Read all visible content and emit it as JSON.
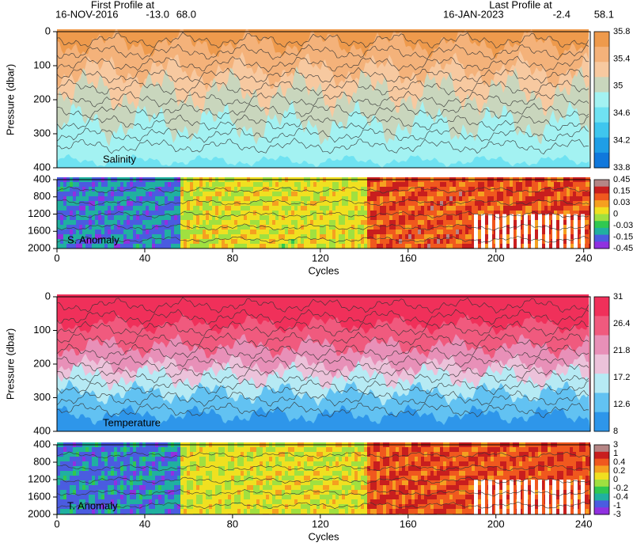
{
  "header": {
    "first_label": "First Profile at",
    "first_date": "16-NOV-2016",
    "first_lon": "-13.0",
    "first_lat": "68.0",
    "last_label": "Last Profile at",
    "last_date": "16-JAN-2023",
    "last_lon": "-2.4",
    "last_lat": "58.1"
  },
  "panels": [
    {
      "label": "Salinity",
      "ylabel": "Pressure (dbar)",
      "ylim": [
        0,
        400
      ],
      "yticks": [
        0,
        100,
        200,
        300,
        400
      ],
      "xlim": [
        0,
        243
      ],
      "colorbar": {
        "labels": [
          "35.8",
          "35.4",
          "35",
          "34.6",
          "34.2",
          "33.8"
        ],
        "colors": [
          "#ee9a4c",
          "#f4b27a",
          "#f7c9a0",
          "#c9d6bd",
          "#a3f2f2",
          "#6fe2f2",
          "#3fc6ee",
          "#1f9ee6",
          "#1078dc"
        ]
      }
    },
    {
      "label": "S. Anomaly",
      "xlabel": "Cycles",
      "ylim": [
        400,
        2000
      ],
      "yticks": [
        400,
        800,
        1200,
        1600,
        2000
      ],
      "xlim": [
        0,
        243
      ],
      "xticks": [
        0,
        40,
        80,
        120,
        160,
        200,
        240
      ],
      "colorbar": {
        "labels": [
          "0.45",
          "0.15",
          "0.03",
          "0",
          "-0.03",
          "-0.15",
          "-0.45"
        ],
        "colors": [
          "#b58585",
          "#c81e1e",
          "#f0581e",
          "#f5a020",
          "#f0e020",
          "#a0e040",
          "#30c850",
          "#20b0a0",
          "#4a5ce0",
          "#9030e0"
        ]
      }
    },
    {
      "label": "Temperature",
      "ylabel": "Pressure (dbar)",
      "ylim": [
        0,
        400
      ],
      "yticks": [
        0,
        100,
        200,
        300,
        400
      ],
      "xlim": [
        0,
        243
      ],
      "colorbar": {
        "labels": [
          "31",
          "26.4",
          "21.8",
          "17.2",
          "12.6",
          "8"
        ],
        "colors": [
          "#f0305a",
          "#f05a7e",
          "#e890b8",
          "#ecc2da",
          "#b6eaf4",
          "#62c2f2",
          "#2e96ea"
        ]
      }
    },
    {
      "label": "T. Anomaly",
      "xlabel": "Cycles",
      "ylim": [
        400,
        2000
      ],
      "yticks": [
        400,
        800,
        1200,
        1600,
        2000
      ],
      "xlim": [
        0,
        243
      ],
      "xticks": [
        0,
        40,
        80,
        120,
        160,
        200,
        240
      ],
      "colorbar": {
        "labels": [
          "3",
          "1",
          "0.4",
          "0.2",
          "0",
          "-0.2",
          "-0.4",
          "-1",
          "-3"
        ],
        "colors": [
          "#b58585",
          "#c81e1e",
          "#f0581e",
          "#f5a020",
          "#f0e020",
          "#a0e040",
          "#30c850",
          "#20b0a0",
          "#4a5ce0",
          "#9030e0"
        ]
      }
    }
  ]
}
